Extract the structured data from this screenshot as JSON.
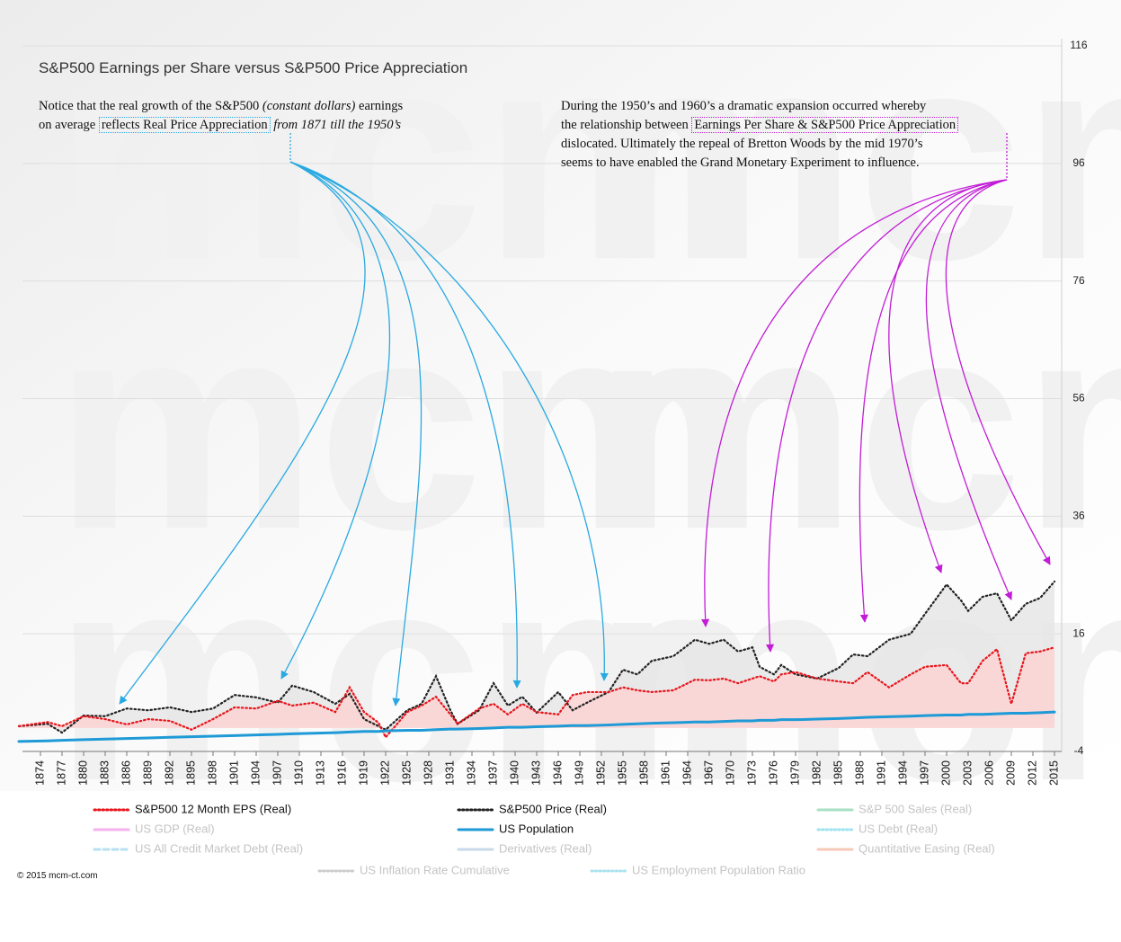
{
  "chart_data": {
    "type": "line",
    "title": "S&P500 Earnings per Share versus S&P500 Price Appreciation",
    "watermark": "mcm",
    "notes": {
      "left": [
        [
          "Notice that the real growth of the S&P500",
          "(constant dollars)",
          "earnings"
        ],
        [
          "on average",
          "reflects Real Price Appreciation",
          "from 1871 till the 1950’s"
        ]
      ],
      "right": [
        [
          "During the 1950’s and 1960’s a dramatic expansion occurred whereby"
        ],
        [
          "the relationship between",
          "Earnings Per Share & S&P500 Price Appreciation"
        ],
        [
          "dislocated. Ultimately the repeal of Bretton Woods by the mid 1970’s"
        ],
        [
          "seems to have enabled the Grand Monetary Experiment to influence."
        ]
      ]
    },
    "copyright": "© 2015 mcm-ct.com",
    "x": [
      1871,
      1875,
      1877,
      1880,
      1883,
      1886,
      1889,
      1892,
      1895,
      1898,
      1901,
      1904,
      1907,
      1909,
      1912,
      1915,
      1917,
      1919,
      1921,
      1922,
      1925,
      1927,
      1929,
      1931,
      1932,
      1935,
      1937,
      1939,
      1941,
      1943,
      1946,
      1948,
      1950,
      1953,
      1955,
      1957,
      1959,
      1962,
      1965,
      1967,
      1969,
      1971,
      1973,
      1974,
      1976,
      1977,
      1979,
      1982,
      1985,
      1987,
      1989,
      1992,
      1995,
      1997,
      2000,
      2002,
      2003,
      2005,
      2007,
      2009,
      2011,
      2013,
      2015
    ],
    "series": [
      {
        "name": "S&P500 12 Month EPS (Real)",
        "color": "#e8141b",
        "area_color": "#fcd3d3",
        "style": "dotted",
        "values": [
          0.3,
          1.0,
          0.3,
          2.0,
          1.5,
          0.6,
          1.5,
          1.2,
          -0.3,
          1.5,
          3.5,
          3.3,
          4.6,
          3.8,
          4.3,
          2.7,
          6.9,
          2.7,
          0.9,
          -1.6,
          2.7,
          3.8,
          5.3,
          2.3,
          0.7,
          3.3,
          4.1,
          2.3,
          4.1,
          2.7,
          2.3,
          5.6,
          6.1,
          6.1,
          6.9,
          6.4,
          6.1,
          6.4,
          8.2,
          8.1,
          8.4,
          7.6,
          8.4,
          8.8,
          7.9,
          9.1,
          9.5,
          8.4,
          7.9,
          7.6,
          9.5,
          6.9,
          9.1,
          10.4,
          10.7,
          7.6,
          7.6,
          11.4,
          13.4,
          4.1,
          12.7,
          13.0,
          13.7
        ]
      },
      {
        "name": "S&P500 Price (Real)",
        "color": "#222222",
        "area_color": "#e6e6e6",
        "style": "dotted",
        "values": [
          0.3,
          0.7,
          -0.8,
          2.1,
          2.0,
          3.3,
          3.0,
          3.5,
          2.7,
          3.3,
          5.6,
          5.2,
          4.3,
          7.2,
          6.1,
          4.1,
          5.8,
          1.5,
          0.3,
          -0.3,
          3.0,
          4.1,
          8.8,
          3.0,
          0.7,
          3.0,
          7.6,
          3.8,
          5.3,
          2.6,
          6.1,
          3.0,
          4.3,
          6.1,
          9.9,
          9.1,
          11.4,
          12.2,
          15.0,
          14.3,
          15.0,
          13.0,
          13.7,
          10.4,
          9.1,
          10.7,
          9.1,
          8.4,
          10.2,
          12.5,
          12.2,
          15.0,
          16.0,
          19.4,
          24.4,
          21.7,
          19.9,
          22.3,
          22.9,
          18.3,
          21.1,
          22.1,
          24.9
        ]
      },
      {
        "name": "US Population",
        "color": "#1e9ad6",
        "style": "solid",
        "values": [
          -2.3,
          -2.2,
          -2.1,
          -2.0,
          -1.9,
          -1.8,
          -1.7,
          -1.6,
          -1.5,
          -1.4,
          -1.3,
          -1.2,
          -1.1,
          -1.0,
          -0.9,
          -0.8,
          -0.7,
          -0.6,
          -0.6,
          -0.5,
          -0.4,
          -0.4,
          -0.3,
          -0.2,
          -0.2,
          -0.1,
          0.0,
          0.1,
          0.1,
          0.2,
          0.3,
          0.4,
          0.4,
          0.5,
          0.6,
          0.7,
          0.8,
          0.9,
          1.0,
          1.0,
          1.1,
          1.2,
          1.2,
          1.3,
          1.3,
          1.4,
          1.4,
          1.5,
          1.6,
          1.7,
          1.8,
          1.9,
          2.0,
          2.1,
          2.2,
          2.2,
          2.3,
          2.3,
          2.4,
          2.5,
          2.5,
          2.6,
          2.7
        ]
      }
    ],
    "legend_hidden": [
      {
        "name": "S&P 500 Sales (Real)",
        "color": "#a8e0c4",
        "style": "solid"
      },
      {
        "name": "US GDP (Real)",
        "color": "#f6b2ee",
        "style": "solid"
      },
      {
        "name": "US Debt (Real)",
        "color": "#9ee3f0",
        "style": "dotted"
      },
      {
        "name": "US All Credit Market Debt (Real)",
        "color": "#b7e1f2",
        "style": "dashed"
      },
      {
        "name": "Derivatives  (Real)",
        "color": "#c8d9ea",
        "style": "solid"
      },
      {
        "name": "Quantitative Easing (Real)",
        "color": "#f8c8b8",
        "style": "solid"
      },
      {
        "name": "US Inflation Rate Cumulative",
        "color": "#cccccc",
        "style": "dotted"
      },
      {
        "name": "US Employment Population Ratio",
        "color": "#a9e3ef",
        "style": "dotted"
      }
    ],
    "xlim": [
      1871,
      2016
    ],
    "xticks": [
      1874,
      1877,
      1880,
      1883,
      1886,
      1889,
      1892,
      1895,
      1898,
      1901,
      1904,
      1907,
      1910,
      1913,
      1916,
      1919,
      1922,
      1925,
      1928,
      1931,
      1934,
      1937,
      1940,
      1943,
      1946,
      1949,
      1952,
      1955,
      1958,
      1961,
      1964,
      1967,
      1970,
      1973,
      1976,
      1979,
      1982,
      1985,
      1988,
      1991,
      1994,
      1997,
      2000,
      2003,
      2006,
      2009,
      2012,
      2015
    ],
    "ylim": [
      -4,
      116
    ],
    "yticks": [
      -4,
      16,
      36,
      56,
      76,
      96,
      116
    ],
    "grid": true
  }
}
